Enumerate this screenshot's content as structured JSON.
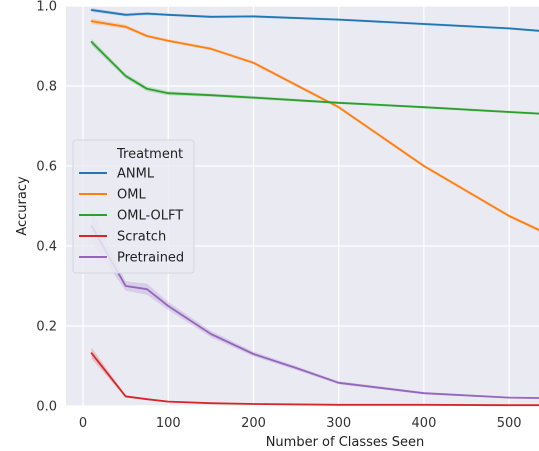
{
  "chart_data": {
    "type": "line",
    "title": "",
    "xlabel": "Number of Classes Seen",
    "ylabel": "Accuracy",
    "xlim": [
      -20,
      535
    ],
    "ylim": [
      0.0,
      1.0
    ],
    "xticks": [
      0,
      100,
      200,
      300,
      400,
      500
    ],
    "yticks": [
      0.0,
      0.2,
      0.4,
      0.6,
      0.8,
      1.0
    ],
    "xtick_labels": [
      "0",
      "100",
      "200",
      "300",
      "400",
      "500"
    ],
    "ytick_labels": [
      "0.0",
      "0.2",
      "0.4",
      "0.6",
      "0.8",
      "1.0"
    ],
    "grid": true,
    "background": "#eaeaf2",
    "legend": {
      "title": "Treatment",
      "position": "center-left"
    },
    "series": [
      {
        "name": "ANML",
        "color": "#1f77b4",
        "x": [
          10,
          50,
          75,
          100,
          150,
          200,
          300,
          400,
          500,
          535
        ],
        "y": [
          0.99,
          0.978,
          0.981,
          0.978,
          0.973,
          0.974,
          0.966,
          0.955,
          0.944,
          0.938
        ],
        "band": [
          0.005,
          0.004,
          0.004,
          0.003,
          0.003,
          0.003,
          0.003,
          0.003,
          0.003,
          0.003
        ]
      },
      {
        "name": "OML",
        "color": "#ff7f0e",
        "x": [
          10,
          50,
          75,
          100,
          150,
          200,
          300,
          400,
          500,
          535
        ],
        "y": [
          0.962,
          0.948,
          0.925,
          0.913,
          0.893,
          0.858,
          0.747,
          0.6,
          0.475,
          0.44
        ],
        "band": [
          0.007,
          0.005,
          0.004,
          0.004,
          0.004,
          0.004,
          0.004,
          0.004,
          0.004,
          0.004
        ]
      },
      {
        "name": "OML-OLFT",
        "color": "#2ca02c",
        "x": [
          10,
          50,
          75,
          100,
          150,
          200,
          300,
          400,
          500,
          535
        ],
        "y": [
          0.91,
          0.825,
          0.793,
          0.782,
          0.777,
          0.771,
          0.758,
          0.747,
          0.735,
          0.731
        ],
        "band": [
          0.008,
          0.006,
          0.006,
          0.005,
          0.004,
          0.004,
          0.003,
          0.003,
          0.003,
          0.003
        ]
      },
      {
        "name": "Scratch",
        "color": "#d62728",
        "x": [
          10,
          50,
          75,
          100,
          150,
          200,
          300,
          400,
          500,
          535
        ],
        "y": [
          0.132,
          0.024,
          0.017,
          0.011,
          0.007,
          0.005,
          0.003,
          0.003,
          0.002,
          0.002
        ],
        "band": [
          0.014,
          0.003,
          0.002,
          0.002,
          0.001,
          0.001,
          0.001,
          0.001,
          0.001,
          0.001
        ]
      },
      {
        "name": "Pretrained",
        "color": "#9467bd",
        "x": [
          10,
          50,
          75,
          100,
          150,
          200,
          250,
          300,
          400,
          500,
          535
        ],
        "y": [
          0.45,
          0.3,
          0.292,
          0.25,
          0.18,
          0.13,
          0.095,
          0.058,
          0.032,
          0.021,
          0.02
        ],
        "band": [
          0.04,
          0.012,
          0.014,
          0.01,
          0.008,
          0.006,
          0.005,
          0.004,
          0.003,
          0.002,
          0.002
        ]
      }
    ]
  }
}
